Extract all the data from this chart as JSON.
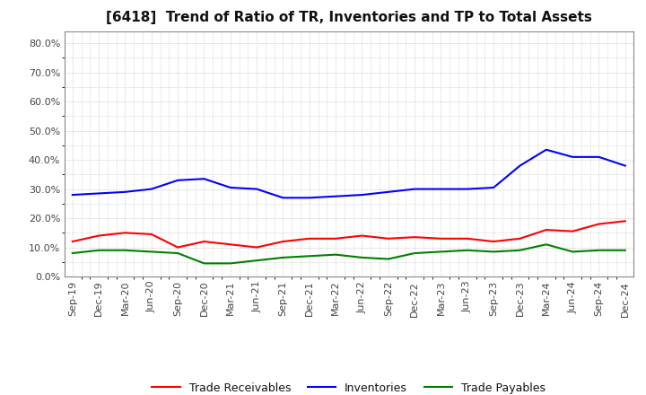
{
  "title": "[6418]  Trend of Ratio of TR, Inventories and TP to Total Assets",
  "x_labels": [
    "Sep-19",
    "Dec-19",
    "Mar-20",
    "Jun-20",
    "Sep-20",
    "Dec-20",
    "Mar-21",
    "Jun-21",
    "Sep-21",
    "Dec-21",
    "Mar-22",
    "Jun-22",
    "Sep-22",
    "Dec-22",
    "Mar-23",
    "Jun-23",
    "Sep-23",
    "Dec-23",
    "Mar-24",
    "Jun-24",
    "Sep-24",
    "Dec-24"
  ],
  "trade_receivables": [
    0.12,
    0.14,
    0.15,
    0.145,
    0.1,
    0.12,
    0.11,
    0.1,
    0.12,
    0.13,
    0.13,
    0.14,
    0.13,
    0.135,
    0.13,
    0.13,
    0.12,
    0.13,
    0.16,
    0.155,
    0.18,
    0.19
  ],
  "inventories": [
    0.28,
    0.285,
    0.29,
    0.3,
    0.33,
    0.335,
    0.305,
    0.3,
    0.27,
    0.27,
    0.275,
    0.28,
    0.29,
    0.3,
    0.3,
    0.3,
    0.305,
    0.38,
    0.435,
    0.41,
    0.41,
    0.38
  ],
  "trade_payables": [
    0.08,
    0.09,
    0.09,
    0.085,
    0.08,
    0.045,
    0.045,
    0.055,
    0.065,
    0.07,
    0.075,
    0.065,
    0.06,
    0.08,
    0.085,
    0.09,
    0.085,
    0.09,
    0.11,
    0.085,
    0.09,
    0.09
  ],
  "tr_color": "#ff0000",
  "inv_color": "#0000ff",
  "tp_color": "#008000",
  "ylim": [
    0.0,
    0.84
  ],
  "yticks": [
    0.0,
    0.1,
    0.2,
    0.3,
    0.4,
    0.5,
    0.6,
    0.7,
    0.8
  ],
  "legend_labels": [
    "Trade Receivables",
    "Inventories",
    "Trade Payables"
  ],
  "bg_color": "#ffffff",
  "plot_bg_color": "#ffffff",
  "grid_color": "#aaaaaa",
  "title_fontsize": 11,
  "tick_fontsize": 8,
  "legend_fontsize": 9
}
